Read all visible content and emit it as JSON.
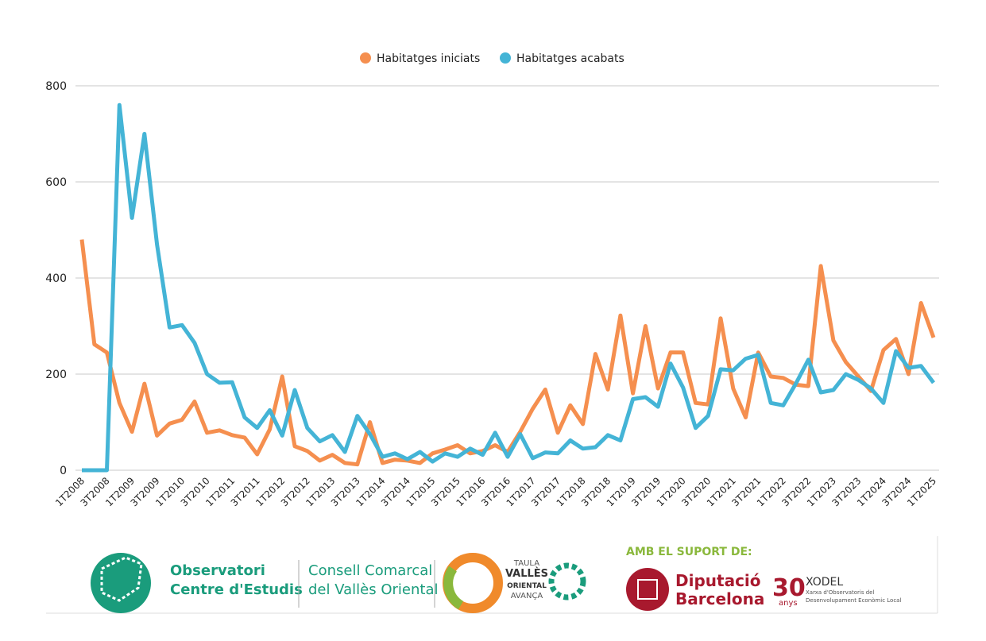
{
  "chart_data": {
    "type": "line",
    "categories": [
      "1T2008",
      null,
      "3T2008",
      null,
      "1T2009",
      null,
      "3T2009",
      null,
      "1T2010",
      null,
      "3T2010",
      null,
      "1T2011",
      null,
      "3T2011",
      null,
      "1T2012",
      null,
      "3T2012",
      null,
      "1T2013",
      null,
      "3T2013",
      null,
      "1T2014",
      null,
      "3T2014",
      null,
      "1T2015",
      null,
      "3T2015",
      null,
      "1T2016",
      null,
      "3T2016",
      null,
      "1T2017",
      null,
      "3T2017",
      null,
      "1T2018",
      null,
      "3T2018",
      null,
      "1T2019",
      null,
      "3T2019",
      null,
      "1T2020",
      null,
      "3T2020",
      null,
      "1T2021",
      null,
      "3T2021",
      null,
      "1T2022",
      null,
      "3T2022",
      null,
      "1T2023",
      null,
      "3T2023",
      null,
      "1T2024",
      null,
      "3T2024",
      null,
      "1T2025"
    ],
    "series": [
      {
        "name": "Habitatges iniciats",
        "color": "#f58f4f",
        "values": [
          480,
          262,
          245,
          140,
          80,
          180,
          72,
          97,
          105,
          143,
          78,
          83,
          73,
          68,
          33,
          85,
          195,
          50,
          40,
          20,
          32,
          15,
          12,
          100,
          15,
          22,
          20,
          15,
          35,
          43,
          52,
          35,
          40,
          52,
          38,
          80,
          128,
          168,
          78,
          135,
          96,
          242,
          168,
          322,
          160,
          300,
          170,
          245,
          245,
          140,
          137,
          316,
          170,
          110,
          245,
          195,
          192,
          178,
          175,
          425,
          270,
          225,
          195,
          165,
          250,
          273,
          200,
          348,
          276
        ]
      },
      {
        "name": "Habitatges acabats",
        "color": "#44b4d6",
        "values": [
          0,
          0,
          0,
          760,
          525,
          700,
          470,
          297,
          302,
          265,
          200,
          182,
          183,
          110,
          88,
          125,
          72,
          167,
          88,
          60,
          73,
          38,
          113,
          75,
          28,
          35,
          23,
          38,
          18,
          35,
          28,
          45,
          32,
          78,
          28,
          75,
          25,
          37,
          35,
          62,
          45,
          48,
          73,
          62,
          148,
          152,
          132,
          222,
          172,
          88,
          113,
          210,
          208,
          232,
          240,
          140,
          135,
          180,
          230,
          162,
          167,
          200,
          188,
          170,
          140,
          248,
          213,
          217,
          182
        ]
      }
    ],
    "ylim": [
      0,
      800
    ],
    "yticks": [
      0,
      200,
      400,
      600,
      800
    ],
    "grid": true,
    "legend": "top"
  },
  "footer": {
    "observatori": [
      "Observatori",
      "Centre d'Estudis"
    ],
    "consell": [
      "Consell Comarcal",
      "del Vallès Oriental"
    ],
    "taula": [
      "TAULA",
      "VALLÈS",
      "ORIENTAL",
      "AVANÇA"
    ],
    "suport": "AMB EL SUPORT DE:",
    "diputacio": [
      "Diputació",
      "Barcelona"
    ],
    "xodel": {
      "number": "30",
      "anys": "anys",
      "name": "XODEL",
      "desc": [
        "Xarxa d'Observatoris del",
        "Desenvolupament Econòmic Local"
      ]
    }
  }
}
